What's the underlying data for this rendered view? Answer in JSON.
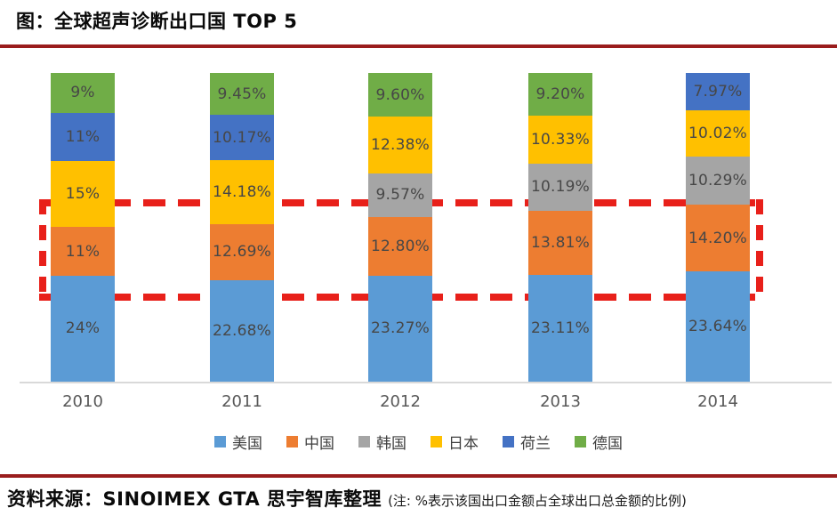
{
  "page": {
    "title": "图：全球超声诊断出口国 TOP 5",
    "source_line": "资料来源：SINOIMEX GTA  思宇智库整理",
    "source_note": "(注: %表示该国出口金额占全球出口总金额的比例)"
  },
  "colors": {
    "divider_red": "#9A1D1D",
    "highlight_dashed_red": "#E8201A",
    "axis_line": "#D9D9D9",
    "segment_label_text": "#474747",
    "usa_blue": "#5B9BD5",
    "china_orange": "#ED7D31",
    "korea_gray": "#A5A5A5",
    "japan_yellow": "#FFC000",
    "netherlands_blue": "#4472C4",
    "germany_green": "#70AD47"
  },
  "legend": [
    {
      "label": "美国",
      "color": "#5B9BD5"
    },
    {
      "label": "中国",
      "color": "#ED7D31"
    },
    {
      "label": "韩国",
      "color": "#A5A5A5"
    },
    {
      "label": "日本",
      "color": "#FFC000"
    },
    {
      "label": "荷兰",
      "color": "#4472C4"
    },
    {
      "label": "德国",
      "color": "#70AD47"
    }
  ],
  "chart_data": {
    "type": "bar",
    "stacked": true,
    "title": "全球超声诊断出口国 TOP 5",
    "xlabel": "",
    "ylabel": "",
    "unit": "% 占全球出口总金额的比例",
    "grid": false,
    "legend_position": "bottom",
    "categories": [
      "2010",
      "2011",
      "2012",
      "2013",
      "2014"
    ],
    "bars": [
      {
        "year": "2010",
        "segments_top_to_bottom": [
          {
            "country": "德国",
            "label": "9%",
            "value": 9,
            "color": "#70AD47"
          },
          {
            "country": "荷兰",
            "label": "11%",
            "value": 11,
            "color": "#4472C4"
          },
          {
            "country": "日本",
            "label": "15%",
            "value": 15,
            "color": "#FFC000"
          },
          {
            "country": "中国",
            "label": "11%",
            "value": 11,
            "color": "#ED7D31"
          },
          {
            "country": "美国",
            "label": "24%",
            "value": 24,
            "color": "#5B9BD5"
          }
        ]
      },
      {
        "year": "2011",
        "segments_top_to_bottom": [
          {
            "country": "德国",
            "label": "9.45%",
            "value": 9.45,
            "color": "#70AD47"
          },
          {
            "country": "荷兰",
            "label": "10.17%",
            "value": 10.17,
            "color": "#4472C4"
          },
          {
            "country": "日本",
            "label": "14.18%",
            "value": 14.18,
            "color": "#FFC000"
          },
          {
            "country": "中国",
            "label": "12.69%",
            "value": 12.69,
            "color": "#ED7D31"
          },
          {
            "country": "美国",
            "label": "22.68%",
            "value": 22.68,
            "color": "#5B9BD5"
          }
        ]
      },
      {
        "year": "2012",
        "segments_top_to_bottom": [
          {
            "country": "德国",
            "label": "9.60%",
            "value": 9.6,
            "color": "#70AD47"
          },
          {
            "country": "日本",
            "label": "12.38%",
            "value": 12.38,
            "color": "#FFC000"
          },
          {
            "country": "韩国",
            "label": "9.57%",
            "value": 9.57,
            "color": "#A5A5A5"
          },
          {
            "country": "中国",
            "label": "12.80%",
            "value": 12.8,
            "color": "#ED7D31"
          },
          {
            "country": "美国",
            "label": "23.27%",
            "value": 23.27,
            "color": "#5B9BD5"
          }
        ]
      },
      {
        "year": "2013",
        "segments_top_to_bottom": [
          {
            "country": "德国",
            "label": "9.20%",
            "value": 9.2,
            "color": "#70AD47"
          },
          {
            "country": "日本",
            "label": "10.33%",
            "value": 10.33,
            "color": "#FFC000"
          },
          {
            "country": "韩国",
            "label": "10.19%",
            "value": 10.19,
            "color": "#A5A5A5"
          },
          {
            "country": "中国",
            "label": "13.81%",
            "value": 13.81,
            "color": "#ED7D31"
          },
          {
            "country": "美国",
            "label": "23.11%",
            "value": 23.11,
            "color": "#5B9BD5"
          }
        ]
      },
      {
        "year": "2014",
        "segments_top_to_bottom": [
          {
            "country": "荷兰",
            "label": "7.97%",
            "value": 7.97,
            "color": "#4472C4"
          },
          {
            "country": "日本",
            "label": "10.02%",
            "value": 10.02,
            "color": "#FFC000"
          },
          {
            "country": "韩国",
            "label": "10.29%",
            "value": 10.29,
            "color": "#A5A5A5"
          },
          {
            "country": "中国",
            "label": "14.20%",
            "value": 14.2,
            "color": "#ED7D31"
          },
          {
            "country": "美国",
            "label": "23.64%",
            "value": 23.64,
            "color": "#5B9BD5"
          }
        ]
      }
    ],
    "annotation": {
      "type": "dashed-rectangle",
      "color": "#E8201A",
      "highlights": "中国（橙色）各年份出口占比区段"
    }
  }
}
